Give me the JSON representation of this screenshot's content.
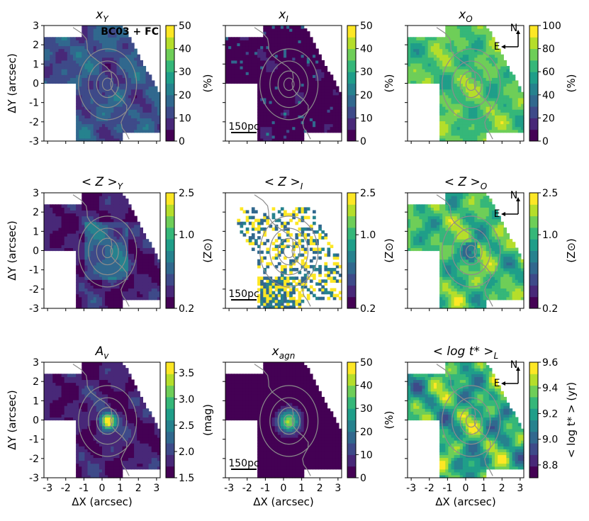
{
  "colors": {
    "viridis": [
      "#440154",
      "#482878",
      "#3e4a89",
      "#31688e",
      "#26828e",
      "#1f9e89",
      "#35b779",
      "#6ece58",
      "#b5de2b",
      "#fde725"
    ],
    "contour": "#8c8c8c",
    "mask": "#ffffff",
    "frame": "#000000"
  },
  "chart_data": {
    "type": "heatmap",
    "xlabel": "ΔX (arcsec)",
    "ylabel": "ΔY (arcsec)",
    "xlim": [
      -3.2,
      3.2
    ],
    "ylim": [
      -3,
      3
    ],
    "xticks": [
      "-3",
      "-2",
      "-1",
      "0",
      "1",
      "2",
      "3"
    ],
    "yticks": [
      "3",
      "2",
      "1",
      "0",
      "-1",
      "-2",
      "-3"
    ],
    "annotation": "BC03 + FC",
    "scale_bar_label": "150pc",
    "compass": {
      "north": "N",
      "east": "E"
    },
    "contour_levels": 4,
    "panels": [
      {
        "title_main": "x",
        "title_sub": "Y",
        "mode": "young",
        "cbar_label": "(%)",
        "cbar_ticks": [
          "50",
          "40",
          "30",
          "20",
          "10",
          "0"
        ],
        "cbar_range": [
          0,
          50
        ]
      },
      {
        "title_main": "x",
        "title_sub": "I",
        "mode": "inter",
        "cbar_label": "(%)",
        "cbar_ticks": [
          "50",
          "40",
          "30",
          "20",
          "10",
          "0"
        ],
        "cbar_range": [
          0,
          50
        ]
      },
      {
        "title_main": "x",
        "title_sub": "O",
        "mode": "old",
        "cbar_label": "(%)",
        "cbar_ticks": [
          "100",
          "80",
          "60",
          "40",
          "20",
          "0"
        ],
        "cbar_range": [
          0,
          100
        ]
      },
      {
        "title_main": "< Z >",
        "title_sub": "Y",
        "mode": "zy",
        "cbar_label": "(Z⊙)",
        "cbar_ticks": [
          "2.5",
          "1.0",
          "0.2"
        ],
        "cbar_range": [
          0.2,
          2.5
        ]
      },
      {
        "title_main": "< Z >",
        "title_sub": "I",
        "mode": "zi",
        "cbar_label": "(Z⊙)",
        "cbar_ticks": [
          "2.5",
          "1.0",
          "0.2"
        ],
        "cbar_range": [
          0.2,
          2.5
        ]
      },
      {
        "title_main": "< Z >",
        "title_sub": "O",
        "mode": "zo",
        "cbar_label": "(Z⊙)",
        "cbar_ticks": [
          "2.5",
          "1.0",
          "0.2"
        ],
        "cbar_range": [
          0.2,
          2.5
        ]
      },
      {
        "title_main": "A",
        "title_sub": "v",
        "mode": "av",
        "cbar_label": "(mag)",
        "cbar_ticks": [
          "3.5",
          "3.0",
          "2.5",
          "2.0",
          "1.5"
        ],
        "cbar_range": [
          1.5,
          3.7
        ]
      },
      {
        "title_main": "x",
        "title_sub": "agn",
        "mode": "agn",
        "cbar_label": "(%)",
        "cbar_ticks": [
          "50",
          "40",
          "30",
          "20",
          "10",
          "0"
        ],
        "cbar_range": [
          0,
          50
        ]
      },
      {
        "title_main": "< log t* >",
        "title_sub": "L",
        "mode": "age",
        "cbar_label": "< log t* > (yr)",
        "cbar_ticks": [
          "9.6",
          "9.4",
          "9.2",
          "9.0",
          "8.8"
        ],
        "cbar_range": [
          8.7,
          9.6
        ]
      }
    ]
  }
}
